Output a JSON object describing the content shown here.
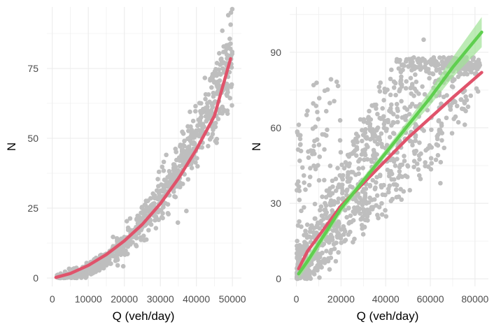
{
  "chart_data": [
    {
      "type": "scatter",
      "title": "",
      "xlabel": "Q (veh/day)",
      "ylabel": "N",
      "xlim": [
        -1500,
        52500
      ],
      "ylim": [
        -3,
        97
      ],
      "xticks": [
        0,
        10000,
        20000,
        30000,
        40000,
        50000
      ],
      "yticks": [
        0,
        25,
        50,
        75
      ],
      "grid": true,
      "legend": "none",
      "point_color": "#bebebe",
      "scatter_model": {
        "x_range": [
          1000,
          50000
        ],
        "n_points": 900,
        "note_fn": "N ~ 0.0000000317*Q^2 + 0.000002*Q"
      },
      "series": [
        {
          "color": "#e0536b",
          "x": [
            1000,
            5000,
            10000,
            15000,
            20000,
            25000,
            30000,
            35000,
            40000,
            45000,
            49500
          ],
          "y": [
            0.2,
            1.6,
            4.5,
            8.4,
            13.3,
            19.2,
            26.6,
            35.6,
            46.0,
            58.0,
            78.5
          ]
        }
      ],
      "outliers": [
        {
          "x": 49600,
          "y": 95
        }
      ]
    },
    {
      "type": "scatter",
      "title": "",
      "xlabel": "Q (veh/day)",
      "ylabel": "N",
      "xlim": [
        -3000,
        86000
      ],
      "ylim": [
        -3,
        108
      ],
      "xticks": [
        0,
        20000,
        40000,
        60000,
        80000
      ],
      "yticks": [
        0,
        30,
        60,
        90
      ],
      "grid": true,
      "legend": "none",
      "point_color": "#bebebe",
      "series": [
        {
          "color": "#e0536b",
          "x": [
            1000,
            5000,
            10000,
            20000,
            30000,
            40000,
            50000,
            60000,
            70000,
            83000
          ],
          "y": [
            4,
            11,
            17,
            29,
            38,
            47,
            56,
            64,
            72,
            82
          ]
        },
        {
          "color": "#5fcf4f",
          "band_color": "#9fe295",
          "x": [
            1000,
            5000,
            10000,
            20000,
            30000,
            40000,
            50000,
            60000,
            70000,
            83000
          ],
          "y": [
            2,
            7,
            14,
            28,
            39,
            50,
            61,
            72,
            84,
            98
          ],
          "lower": [
            0,
            5,
            12,
            26,
            37.5,
            48.5,
            59,
            69,
            80,
            92
          ],
          "upper": [
            4,
            9,
            16,
            30,
            40.5,
            51.5,
            63,
            75,
            88,
            104
          ]
        }
      ],
      "outliers": [
        {
          "x": 57000,
          "y": 95
        },
        {
          "x": 64500,
          "y": 38
        }
      ]
    }
  ]
}
